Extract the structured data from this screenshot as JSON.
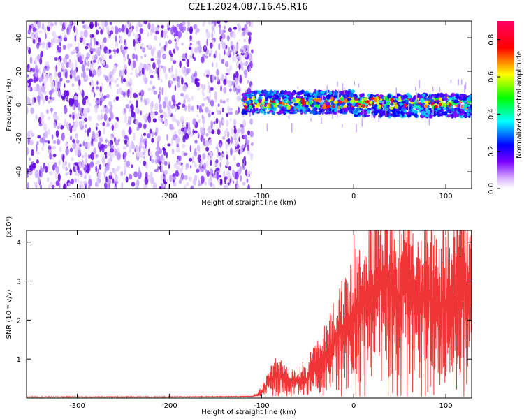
{
  "figure_title": "C2E1.2024.087.16.45.R16",
  "colors": {
    "snr_line": "#ef3535",
    "spectrum_low": "#d9c2ff",
    "spectrum_mid": "#6a0fe6",
    "spectrum_peak": "#ff2a00"
  },
  "chart_data": [
    {
      "type": "heatmap",
      "title": "",
      "xlabel": "Height of straight line (km)",
      "ylabel": "Frequency (Hz)",
      "xlim": [
        -355,
        128
      ],
      "ylim": [
        -50,
        50
      ],
      "xticks": [
        -300,
        -200,
        -100,
        0,
        100
      ],
      "yticks": [
        -40,
        -20,
        0,
        20,
        40
      ],
      "colorbar": {
        "label": "Normalized spectral amplitude",
        "range": [
          0.0,
          0.9
        ],
        "ticks": [
          "0.0",
          "0.2",
          "0.4",
          "0.6",
          "0.8"
        ],
        "colormap": [
          "#ffffff",
          "#d9b3ff",
          "#7a00ff",
          "#0000ff",
          "#00ffff",
          "#00ff00",
          "#ffff00",
          "#ff0000",
          "#ff0066"
        ]
      },
      "regions": [
        {
          "x_range": [
            -355,
            -110
          ],
          "freq_range": [
            -50,
            50
          ],
          "level": 0.15
        },
        {
          "x_range": [
            -120,
            128
          ],
          "freq_range": [
            -5,
            8
          ],
          "level": 0.6
        }
      ]
    },
    {
      "type": "line",
      "title": "",
      "xlabel": "Height of straight line (km)",
      "ylabel": "SNR (10 * v/v)",
      "yscale_note": "(x10⁴)",
      "xlim": [
        -355,
        128
      ],
      "ylim": [
        0,
        4.3
      ],
      "xticks": [
        -300,
        -200,
        -100,
        0,
        100
      ],
      "yticks": [
        1,
        2,
        3,
        4
      ],
      "series": [
        {
          "x": [
            -355,
            -200,
            -110,
            -100,
            -95,
            -90,
            -80,
            -70,
            -60,
            -50,
            -40,
            -30,
            -20,
            -10,
            0,
            10,
            20,
            30,
            40,
            50,
            60,
            70,
            80,
            90,
            100,
            110,
            120,
            128
          ],
          "values": [
            0.02,
            0.02,
            0.03,
            0.15,
            0.3,
            0.5,
            0.55,
            0.4,
            0.45,
            0.5,
            0.8,
            1.1,
            1.5,
            1.8,
            2.1,
            2.4,
            2.8,
            3.2,
            2.9,
            2.6,
            2.9,
            2.5,
            2.7,
            2.4,
            2.5,
            2.6,
            2.8,
            2.5
          ]
        }
      ]
    }
  ]
}
